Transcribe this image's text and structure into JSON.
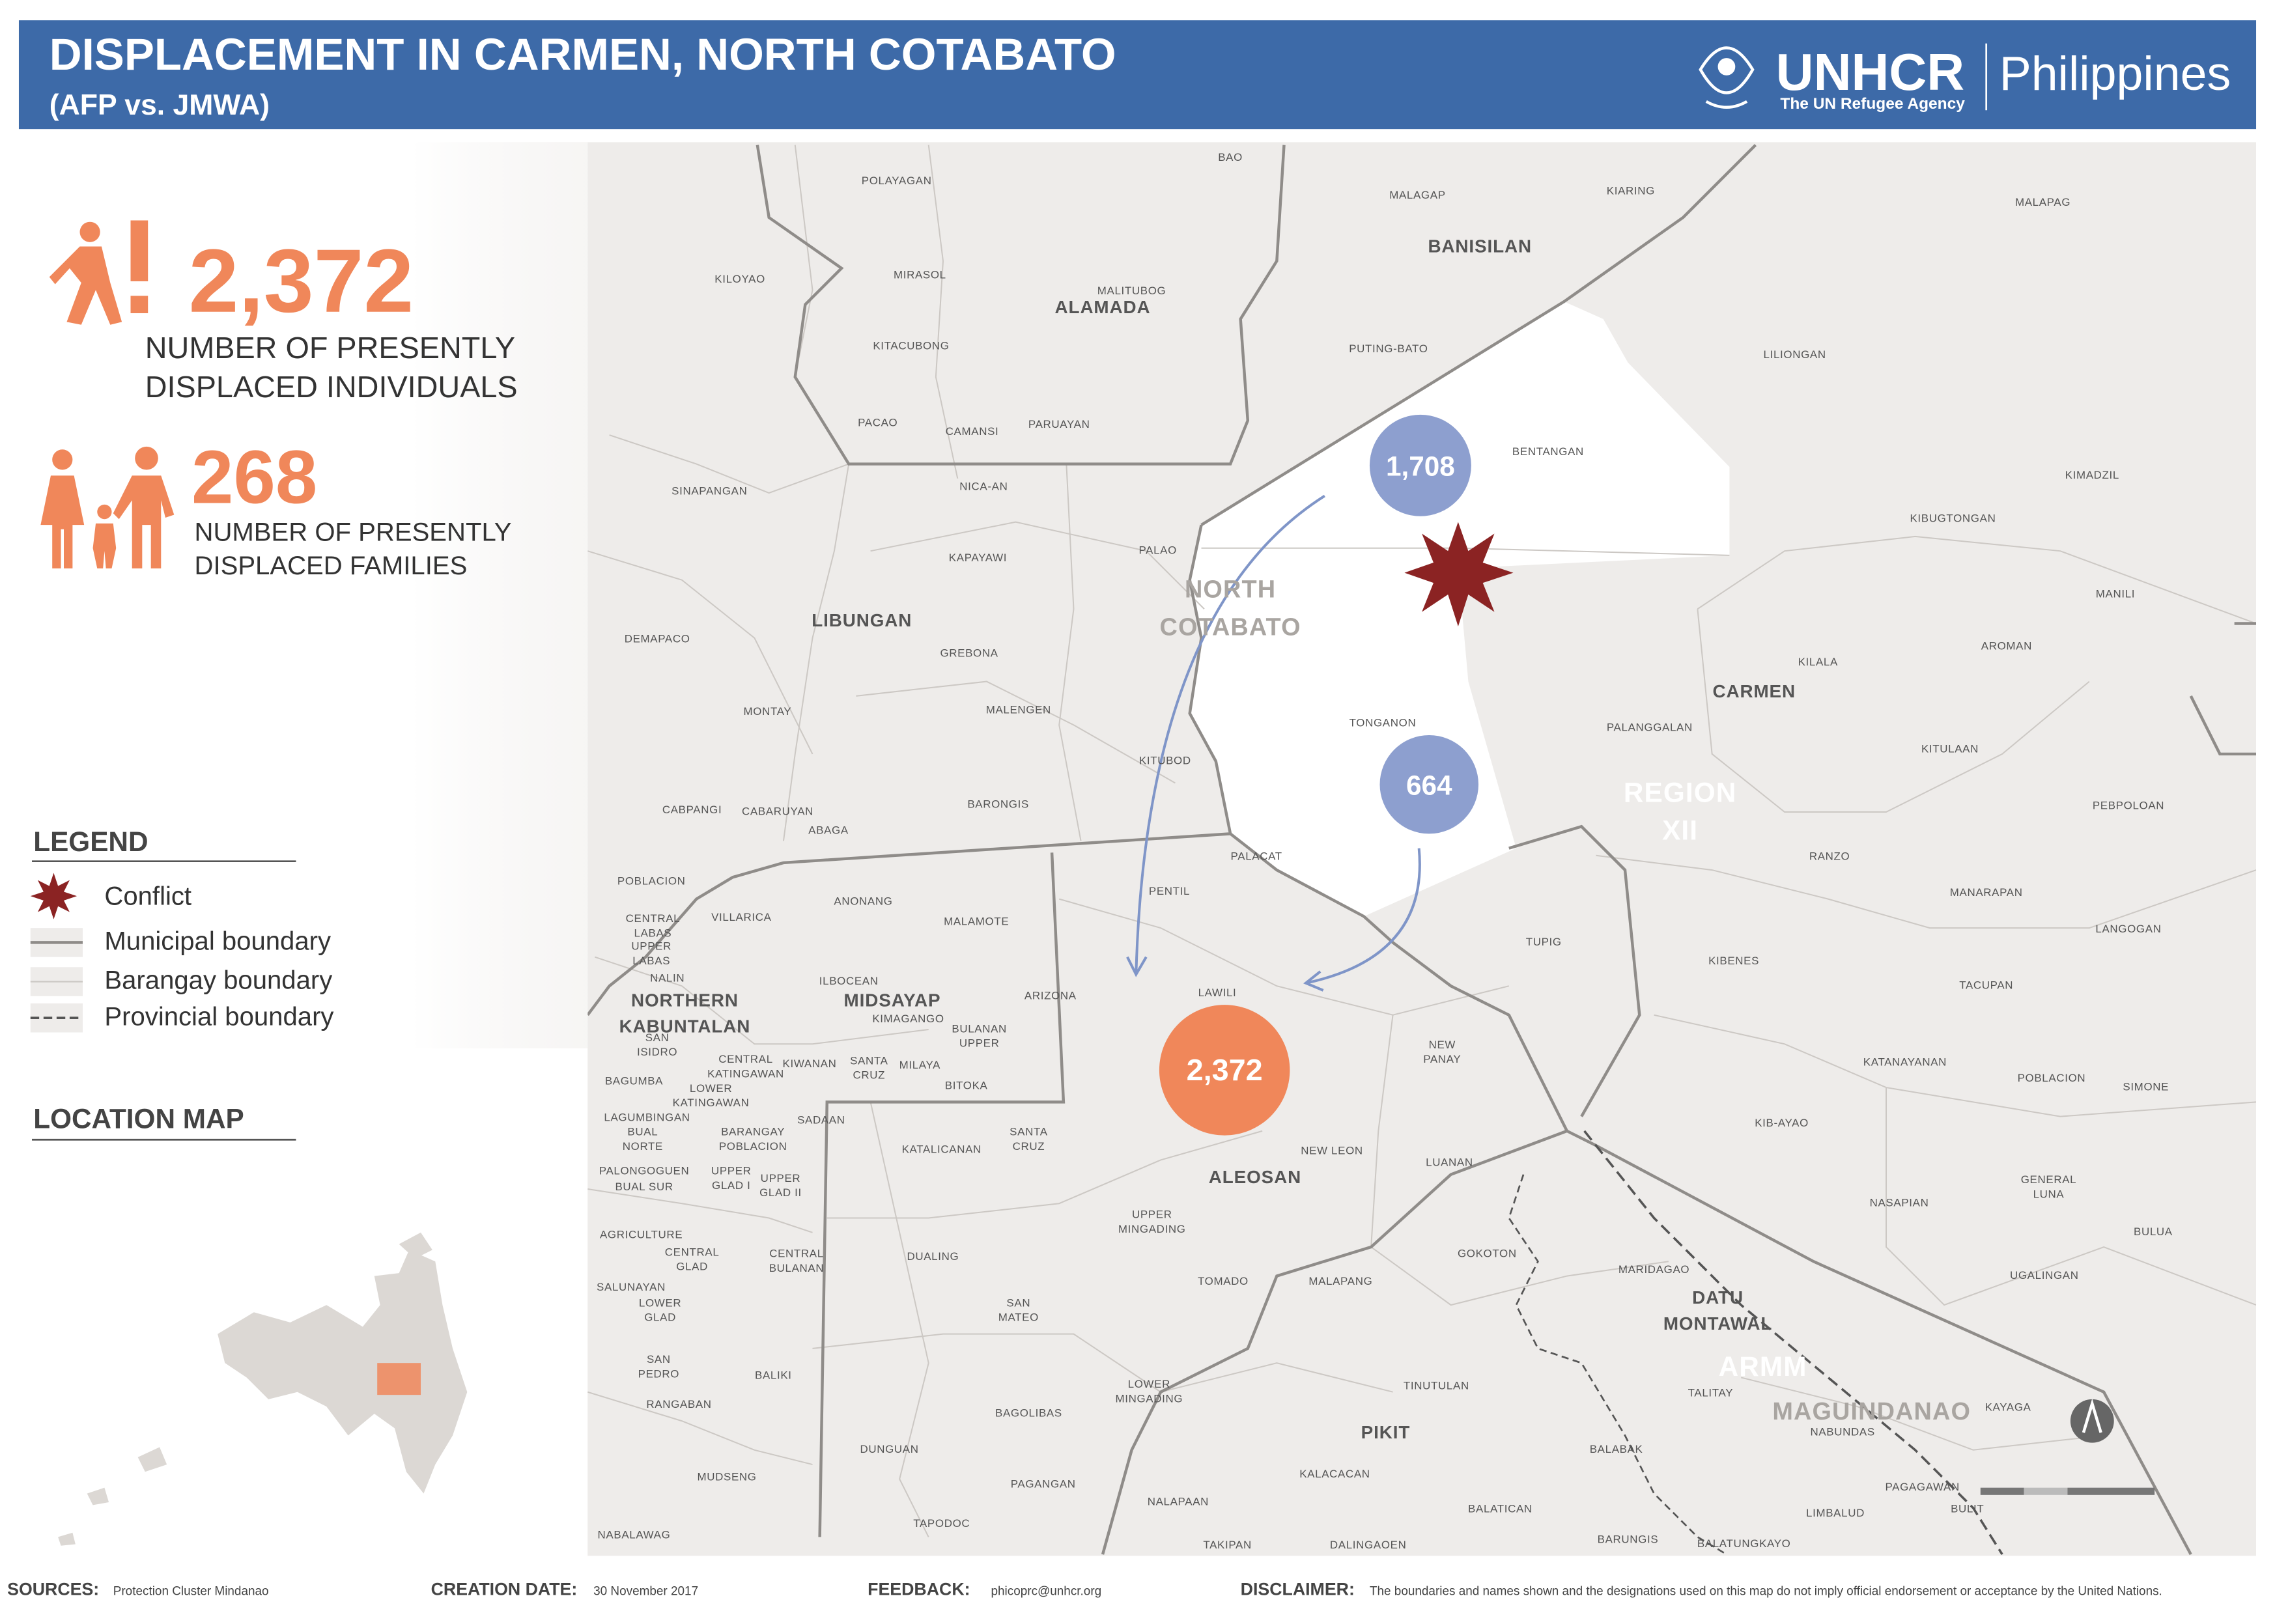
{
  "header": {
    "title": "DISPLACEMENT IN CARMEN, NORTH COTABATO",
    "subtitle": "(AFP vs. JMWA)",
    "org": "UNHCR",
    "org_tagline": "The UN Refugee Agency",
    "country": "Philippines"
  },
  "stats": [
    {
      "value": "2,372",
      "lines": [
        "NUMBER OF PRESENTLY",
        "DISPLACED INDIVIDUALS"
      ]
    },
    {
      "value": "268",
      "lines": [
        "NUMBER OF PRESENTLY",
        "DISPLACED FAMILIES"
      ]
    }
  ],
  "legend": {
    "title": "LEGEND",
    "items": [
      "Conflict",
      "Municipal boundary",
      "Barangay boundary",
      "Provincial boundary"
    ]
  },
  "location_map": {
    "title": "LOCATION MAP"
  },
  "map": {
    "bubbles": [
      "1,708",
      "664",
      "2,372"
    ],
    "regions": [
      [
        "NORTH",
        "COTABATO"
      ],
      [
        "REGION",
        "XII"
      ],
      [
        "ARMM"
      ],
      [
        "MAGUINDANAO"
      ]
    ],
    "municipalities": [
      [
        "BANISILAN"
      ],
      [
        "ALAMADA"
      ],
      [
        "LIBUNGAN"
      ],
      [
        "CARMEN"
      ],
      [
        "MIDSAYAP"
      ],
      [
        "NORTHERN",
        "KABUNTALAN"
      ],
      [
        "ALEOSAN"
      ],
      [
        "DATU",
        "MONTAWAL"
      ],
      [
        "PIKIT"
      ]
    ],
    "barangays": [
      [
        "BAO"
      ],
      [
        "POLAYAGAN"
      ],
      [
        "MALAGAP"
      ],
      [
        "KIARING"
      ],
      [
        "MALAPAG"
      ],
      [
        "KILOYAO"
      ],
      [
        "MIRASOL"
      ],
      [
        "MALITUBOG"
      ],
      [
        "KITACUBONG"
      ],
      [
        "PUTING-BATO"
      ],
      [
        "LILIONGAN"
      ],
      [
        "PACAO"
      ],
      [
        "CAMANSI"
      ],
      [
        "PARUAYAN"
      ],
      [
        "BENTANGAN"
      ],
      [
        "KIMADZIL"
      ],
      [
        "SINAPANGAN"
      ],
      [
        "NICA-AN"
      ],
      [
        "KIBUGTONGAN"
      ],
      [
        "KAPAYAWI"
      ],
      [
        "PALAO"
      ],
      [
        "MANILI"
      ],
      [
        "DEMAPACO"
      ],
      [
        "GREBONA"
      ],
      [
        "AROMAN"
      ],
      [
        "KILALA"
      ],
      [
        "MONTAY"
      ],
      [
        "MALENGEN"
      ],
      [
        "TONGANON"
      ],
      [
        "PALANGGALAN"
      ],
      [
        "KITULAAN"
      ],
      [
        "KITUBOD"
      ],
      [
        "BARONGIS"
      ],
      [
        "CABPANGI"
      ],
      [
        "CABARUYAN"
      ],
      [
        "ABAGA"
      ],
      [
        "PEBPOLOAN"
      ],
      [
        "RANZO"
      ],
      [
        "PALACAT"
      ],
      [
        "PENTIL"
      ],
      [
        "POBLACION"
      ],
      [
        "ANONANG"
      ],
      [
        "MALAMOTE"
      ],
      [
        "VILLARICA"
      ],
      [
        "MANARAPAN"
      ],
      [
        "LANGOGAN"
      ],
      [
        "TUPIG"
      ],
      [
        "KIBENES"
      ],
      [
        "LAWILI"
      ],
      [
        "ARIZONA"
      ],
      [
        "ILBOCEAN"
      ],
      [
        "KIMAGANGO"
      ],
      [
        "TACUPAN"
      ],
      [
        "BULANAN",
        "UPPER"
      ],
      [
        "NEW",
        "PANAY"
      ],
      [
        "KATANAYANAN"
      ],
      [
        "POBLACION"
      ],
      [
        "SIMONE"
      ],
      [
        "KIWANAN"
      ],
      [
        "SANTA",
        "CRUZ"
      ],
      [
        "MILAYA"
      ],
      [
        "BITOKA"
      ],
      [
        "KIB-AYAO"
      ],
      [
        "SADAAN"
      ],
      [
        "KATALICANAN"
      ],
      [
        "SANTA",
        "CRUZ"
      ],
      [
        "NEW LEON"
      ],
      [
        "LUANAN"
      ],
      [
        "NASAPIAN"
      ],
      [
        "GENERAL",
        "LUNA"
      ],
      [
        "BULUA"
      ],
      [
        "UPPER",
        "MINGADING"
      ],
      [
        "GOKOTON"
      ],
      [
        "MARIDAGAO"
      ],
      [
        "DUALING"
      ],
      [
        "TOMADO"
      ],
      [
        "MALAPANG"
      ],
      [
        "UGALINGAN"
      ],
      [
        "SAN",
        "MATEO"
      ],
      [
        "TINUTULAN"
      ],
      [
        "TALITAY"
      ],
      [
        "LOWER",
        "MINGADING"
      ],
      [
        "BAGOLIBAS"
      ],
      [
        "KAYAGA"
      ],
      [
        "NABUNDAS"
      ],
      [
        "BALABAK"
      ],
      [
        "DUNGUAN"
      ],
      [
        "KALACACAN"
      ],
      [
        "PAGAGAWAN"
      ],
      [
        "PAGANGAN"
      ],
      [
        "NALAPAAN"
      ],
      [
        "BALATICAN"
      ],
      [
        "LIMBALUD"
      ],
      [
        "BULIT"
      ],
      [
        "TAPODOC"
      ],
      [
        "TAKIPAN"
      ],
      [
        "DALINGAOEN"
      ],
      [
        "BARUNGIS"
      ],
      [
        "BALATUNGKAYO"
      ],
      [
        "CENTRAL",
        "LABAS"
      ],
      [
        "UPPER",
        "LABAS"
      ],
      [
        "NALIN"
      ],
      [
        "SAN",
        "ISIDRO"
      ],
      [
        "BAGUMBA"
      ],
      [
        "CENTRAL",
        "KATINGAWAN"
      ],
      [
        "LOWER",
        "KATINGAWAN"
      ],
      [
        "LAGUMBINGAN"
      ],
      [
        "BUAL",
        "NORTE"
      ],
      [
        "BARANGAY",
        "POBLACION"
      ],
      [
        "PALONGOGUEN"
      ],
      [
        "BUAL SUR"
      ],
      [
        "UPPER",
        "GLAD I"
      ],
      [
        "UPPER",
        "GLAD II"
      ],
      [
        "AGRICULTURE"
      ],
      [
        "CENTRAL",
        "GLAD"
      ],
      [
        "CENTRAL",
        "BULANAN"
      ],
      [
        "SALUNAYAN"
      ],
      [
        "LOWER",
        "GLAD"
      ],
      [
        "SAN",
        "PEDRO"
      ],
      [
        "BALIKI"
      ],
      [
        "RANGABAN"
      ],
      [
        "MUDSENG"
      ],
      [
        "NABALAWAG"
      ]
    ]
  },
  "footer": [
    {
      "label": "SOURCES:",
      "text": "Protection Cluster Mindanao"
    },
    {
      "label": "CREATION DATE:",
      "text": "30 November 2017"
    },
    {
      "label": "FEEDBACK:",
      "text": "phicoprc@unhcr.org"
    },
    {
      "label": "DISCLAIMER:",
      "text": "The boundaries and names shown and the designations used on this map do not imply official endorsement or acceptance by the United Nations."
    }
  ]
}
